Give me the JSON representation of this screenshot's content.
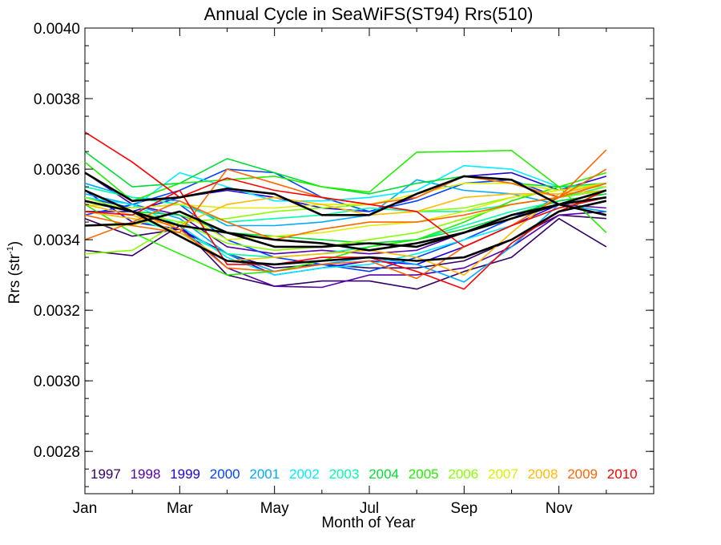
{
  "chart_data": {
    "type": "line",
    "title": "Annual Cycle in SeaWiFS(ST94) Rrs(510)",
    "xlabel": "Month of Year",
    "ylabel": "Rrs (str",
    "ylabel_sup": "-1",
    "ylabel_suffix": ")",
    "xlim": [
      1,
      13
    ],
    "ylim": [
      0.00268,
      0.004
    ],
    "xticks": [
      {
        "x": 1,
        "label": "Jan"
      },
      {
        "x": 3,
        "label": "Mar"
      },
      {
        "x": 5,
        "label": "May"
      },
      {
        "x": 7,
        "label": "Jul"
      },
      {
        "x": 9,
        "label": "Sep"
      },
      {
        "x": 11,
        "label": "Nov"
      }
    ],
    "yticks": [
      {
        "y": 0.0028,
        "label": "0.0028"
      },
      {
        "y": 0.003,
        "label": "0.0030"
      },
      {
        "y": 0.0032,
        "label": "0.0032"
      },
      {
        "y": 0.0034,
        "label": "0.0034"
      },
      {
        "y": 0.0036,
        "label": "0.0036"
      },
      {
        "y": 0.0038,
        "label": "0.0038"
      },
      {
        "y": 0.004,
        "label": "0.0040"
      }
    ],
    "x": [
      1,
      2,
      3,
      4,
      5,
      6,
      7,
      8,
      9,
      10,
      11,
      12
    ],
    "grid": false,
    "legend_position": "bottom inside plot",
    "series": [
      {
        "name": "1997",
        "color": "#330066",
        "curves": [
          [
            0.00337,
            0.003355,
            0.00344,
            0.0033,
            0.003268,
            0.003283,
            0.003283,
            0.00326,
            0.00331,
            0.00335,
            0.00346,
            0.00338
          ],
          [
            0.00346,
            0.00341,
            0.00343,
            0.00336,
            0.00332,
            0.00333,
            0.00332,
            0.00332,
            0.00334,
            0.0034,
            0.00347,
            0.00346
          ]
        ]
      },
      {
        "name": "1998",
        "color": "#5500AA",
        "curves": [
          [
            0.00351,
            0.00348,
            0.00344,
            0.00332,
            0.003268,
            0.003265,
            0.0033,
            0.0033,
            0.00332,
            0.00338,
            0.00347,
            0.00348
          ],
          [
            0.00359,
            0.0035,
            0.00347,
            0.00338,
            0.00336,
            0.00337,
            0.00336,
            0.00337,
            0.00342,
            0.00346,
            0.0035,
            0.00349
          ]
        ]
      },
      {
        "name": "1999",
        "color": "#2200DD",
        "curves": [
          [
            0.00354,
            0.00345,
            0.00343,
            0.00336,
            0.0033,
            0.00332,
            0.00334,
            0.00333,
            0.00338,
            0.00344,
            0.0035,
            0.00352
          ],
          [
            0.00348,
            0.00348,
            0.00352,
            0.00354,
            0.00352,
            0.00349,
            0.00348,
            0.00352,
            0.00358,
            0.00359,
            0.00354,
            0.00358
          ]
        ]
      },
      {
        "name": "2000",
        "color": "#0044FF",
        "curves": [
          [
            0.00352,
            0.00349,
            0.0035,
            0.0034,
            0.00335,
            0.00333,
            0.00331,
            0.00335,
            0.0034,
            0.00346,
            0.00352,
            0.00356
          ],
          [
            0.00347,
            0.0035,
            0.00354,
            0.0036,
            0.00359,
            0.00352,
            0.00348,
            0.00351,
            0.00356,
            0.00357,
            0.00352,
            0.00354
          ]
        ]
      },
      {
        "name": "2001",
        "color": "#00AAFF",
        "curves": [
          [
            0.00353,
            0.0035,
            0.00346,
            0.00336,
            0.00331,
            0.00333,
            0.00335,
            0.00333,
            0.00328,
            0.00338,
            0.0035,
            0.00354
          ],
          [
            0.00356,
            0.00352,
            0.00351,
            0.00344,
            0.00344,
            0.00345,
            0.00347,
            0.00357,
            0.00354,
            0.00353,
            0.0035,
            0.00348
          ]
        ]
      },
      {
        "name": "2002",
        "color": "#00EEFF",
        "curves": [
          [
            0.0035,
            0.00349,
            0.00359,
            0.00355,
            0.00351,
            0.00351,
            0.00352,
            0.00354,
            0.00361,
            0.0036,
            0.00355,
            0.00355
          ],
          [
            0.00352,
            0.0035,
            0.00344,
            0.00335,
            0.0033,
            0.00332,
            0.00333,
            0.00336,
            0.0034,
            0.00344,
            0.00349,
            0.00352
          ]
        ]
      },
      {
        "name": "2003",
        "color": "#00FFAA",
        "curves": [
          [
            0.00355,
            0.00352,
            0.0035,
            0.00345,
            0.00346,
            0.00347,
            0.00349,
            0.00348,
            0.00348,
            0.0035,
            0.00352,
            0.00355
          ],
          [
            0.00348,
            0.00346,
            0.00342,
            0.00336,
            0.00335,
            0.00336,
            0.00338,
            0.0034,
            0.00344,
            0.00348,
            0.00351,
            0.00353
          ]
        ]
      },
      {
        "name": "2004",
        "color": "#00DD33",
        "curves": [
          [
            0.00365,
            0.00355,
            0.00356,
            0.00363,
            0.00359,
            0.00355,
            0.00353,
            0.00356,
            0.00358,
            0.00356,
            0.00355,
            0.00356
          ],
          [
            0.00354,
            0.00348,
            0.00347,
            0.00342,
            0.00341,
            0.0034,
            0.00339,
            0.0034,
            0.00343,
            0.00347,
            0.00351,
            0.00353
          ]
        ]
      },
      {
        "name": "2005",
        "color": "#22EE00",
        "curves": [
          [
            0.00362,
            0.00351,
            0.00356,
            0.00357,
            0.00358,
            0.00355,
            0.003535,
            0.003648,
            0.00365,
            0.003653,
            0.00355,
            0.00359
          ],
          [
            0.0035,
            0.00342,
            0.00336,
            0.0033,
            0.00331,
            0.00334,
            0.00338,
            0.0034,
            0.00345,
            0.00351,
            0.00355,
            0.00342
          ]
        ]
      },
      {
        "name": "2006",
        "color": "#88FF00",
        "curves": [
          [
            0.00336,
            0.00337,
            0.00345,
            0.00339,
            0.00337,
            0.00338,
            0.0034,
            0.00342,
            0.00346,
            0.0035,
            0.00352,
            0.00354
          ],
          [
            0.00352,
            0.00348,
            0.00345,
            0.00346,
            0.00348,
            0.00349,
            0.0035,
            0.00348,
            0.00349,
            0.00352,
            0.00354,
            0.00356
          ]
        ]
      },
      {
        "name": "2007",
        "color": "#DDEE00",
        "curves": [
          [
            0.00344,
            0.00344,
            0.00348,
            0.0034,
            0.00341,
            0.00342,
            0.00344,
            0.00345,
            0.00348,
            0.00352,
            0.00354,
            0.00356
          ],
          [
            0.0035,
            0.00349,
            0.0035,
            0.00349,
            0.00349,
            0.0035,
            0.0035,
            0.00353,
            0.00356,
            0.00356,
            0.00354,
            0.00355
          ]
        ]
      },
      {
        "name": "2008",
        "color": "#FFBB00",
        "curves": [
          [
            0.0035,
            0.00347,
            0.00342,
            0.00334,
            0.00335,
            0.00336,
            0.00337,
            0.00335,
            0.0033,
            0.00342,
            0.00353,
            0.00356
          ],
          [
            0.00348,
            0.00346,
            0.00344,
            0.0035,
            0.00352,
            0.0035,
            0.00347,
            0.00348,
            0.00352,
            0.00353,
            0.00353,
            0.00354
          ]
        ]
      },
      {
        "name": "2009",
        "color": "#FF6600",
        "curves": [
          [
            0.0034,
            0.00345,
            0.00351,
            0.00345,
            0.0034,
            0.00343,
            0.00345,
            0.00345,
            0.00347,
            0.0035,
            0.00352,
            0.003655
          ],
          [
            0.00354,
            0.00348,
            0.00343,
            0.00332,
            0.00331,
            0.00333,
            0.00334,
            0.00329,
            0.00338,
            0.00344,
            0.00352,
            0.0036
          ],
          [
            0.00347,
            0.00344,
            0.00342,
            0.0036,
            0.00356,
            0.00352,
            0.0035,
            0.00352,
            0.00358,
            0.00356,
            0.00352,
            0.00356
          ]
        ]
      },
      {
        "name": "2010",
        "color": "#FF0000",
        "curves": [
          [
            0.003705,
            0.00362,
            0.00352,
            0.003575,
            0.00354,
            0.00352,
            0.0035,
            0.00348,
            0.00338,
            0.00344,
            0.00349,
            0.00352
          ],
          [
            0.00348,
            0.00347,
            0.00354,
            0.00333,
            0.00333,
            0.00335,
            0.00335,
            0.00331,
            0.00326,
            0.00339,
            0.00348,
            0.00354
          ]
        ]
      },
      {
        "name": "",
        "color": "#000000",
        "role": "mean",
        "curves": [
          [
            0.00359,
            0.00351,
            0.00352,
            0.003545,
            0.00353,
            0.00347,
            0.00347,
            0.00353,
            0.00358,
            0.00357,
            0.0035,
            0.00347
          ],
          [
            0.00354,
            0.00348,
            0.00344,
            0.00342,
            0.0034,
            0.00339,
            0.00337,
            0.00339,
            0.00342,
            0.00346,
            0.0035,
            0.00354
          ],
          [
            0.00344,
            0.003445,
            0.00348,
            0.00342,
            0.00338,
            0.00338,
            0.00339,
            0.00338,
            0.00342,
            0.00347,
            0.0035,
            0.00352
          ],
          [
            0.00351,
            0.00348,
            0.00341,
            0.00334,
            0.00333,
            0.00334,
            0.00335,
            0.00334,
            0.00335,
            0.0034,
            0.00348,
            0.00351
          ]
        ]
      }
    ]
  }
}
